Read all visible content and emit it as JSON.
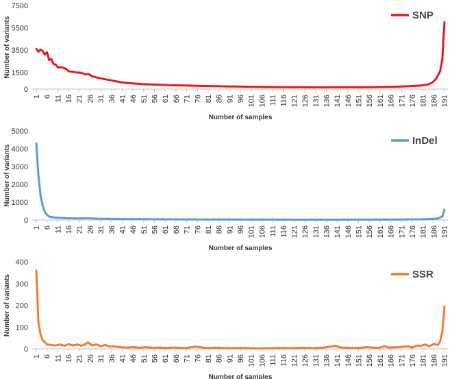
{
  "chart_data": [
    {
      "type": "line",
      "xlabel": "Number of samples",
      "ylabel": "Number of variants",
      "ylim": [
        0,
        7500
      ],
      "yticks": [
        0,
        1500,
        3500,
        5500,
        7500
      ],
      "xlim": [
        1,
        191
      ],
      "xticks": [
        1,
        6,
        11,
        16,
        21,
        26,
        31,
        36,
        41,
        46,
        51,
        56,
        61,
        66,
        71,
        76,
        81,
        86,
        91,
        96,
        101,
        106,
        111,
        116,
        121,
        126,
        131,
        136,
        141,
        146,
        151,
        156,
        161,
        166,
        171,
        176,
        181,
        186,
        191
      ],
      "legend_position": "top-right",
      "series": [
        {
          "name": "SNP",
          "color": "#e41a1c",
          "points": [
            [
              1,
              3600
            ],
            [
              2,
              3350
            ],
            [
              3,
              3550
            ],
            [
              4,
              3400
            ],
            [
              5,
              3100
            ],
            [
              6,
              3300
            ],
            [
              7,
              2600
            ],
            [
              8,
              2700
            ],
            [
              9,
              2250
            ],
            [
              10,
              2200
            ],
            [
              11,
              1950
            ],
            [
              13,
              1950
            ],
            [
              15,
              1800
            ],
            [
              16,
              1600
            ],
            [
              18,
              1550
            ],
            [
              20,
              1480
            ],
            [
              22,
              1450
            ],
            [
              24,
              1300
            ],
            [
              25,
              1380
            ],
            [
              27,
              1150
            ],
            [
              30,
              1000
            ],
            [
              33,
              880
            ],
            [
              36,
              780
            ],
            [
              38,
              700
            ],
            [
              40,
              620
            ],
            [
              43,
              560
            ],
            [
              46,
              510
            ],
            [
              50,
              450
            ],
            [
              55,
              420
            ],
            [
              60,
              380
            ],
            [
              65,
              340
            ],
            [
              70,
              320
            ],
            [
              75,
              300
            ],
            [
              80,
              270
            ],
            [
              85,
              260
            ],
            [
              90,
              240
            ],
            [
              95,
              230
            ],
            [
              100,
              210
            ],
            [
              105,
              200
            ],
            [
              110,
              185
            ],
            [
              115,
              180
            ],
            [
              120,
              175
            ],
            [
              125,
              170
            ],
            [
              130,
              160
            ],
            [
              135,
              160
            ],
            [
              140,
              165
            ],
            [
              145,
              165
            ],
            [
              150,
              170
            ],
            [
              155,
              175
            ],
            [
              160,
              185
            ],
            [
              165,
              200
            ],
            [
              170,
              220
            ],
            [
              175,
              260
            ],
            [
              180,
              320
            ],
            [
              183,
              400
            ],
            [
              185,
              550
            ],
            [
              187,
              900
            ],
            [
              189,
              1600
            ],
            [
              190,
              2700
            ],
            [
              191,
              6000
            ]
          ]
        }
      ]
    },
    {
      "type": "line",
      "xlabel": "Number of samples",
      "ylabel": "Number of variants",
      "ylim": [
        0,
        5000
      ],
      "yticks": [
        0,
        1000,
        2000,
        3000,
        4000,
        5000
      ],
      "xlim": [
        1,
        191
      ],
      "xticks": [
        1,
        6,
        11,
        16,
        21,
        26,
        31,
        36,
        41,
        46,
        51,
        56,
        61,
        66,
        71,
        76,
        81,
        86,
        91,
        96,
        101,
        106,
        111,
        116,
        121,
        126,
        131,
        136,
        141,
        146,
        151,
        156,
        161,
        166,
        171,
        176,
        181,
        186,
        191
      ],
      "legend_position": "top-right",
      "series": [
        {
          "name": "InDel",
          "color": "#5b9bd5",
          "points": [
            [
              1,
              4300
            ],
            [
              2,
              2500
            ],
            [
              3,
              1350
            ],
            [
              4,
              800
            ],
            [
              5,
              450
            ],
            [
              6,
              280
            ],
            [
              7,
              200
            ],
            [
              8,
              160
            ],
            [
              10,
              130
            ],
            [
              12,
              120
            ],
            [
              15,
              100
            ],
            [
              20,
              90
            ],
            [
              25,
              95
            ],
            [
              30,
              75
            ],
            [
              35,
              65
            ],
            [
              40,
              55
            ],
            [
              50,
              45
            ],
            [
              60,
              40
            ],
            [
              70,
              35
            ],
            [
              80,
              30
            ],
            [
              90,
              28
            ],
            [
              100,
              25
            ],
            [
              110,
              22
            ],
            [
              120,
              20
            ],
            [
              130,
              20
            ],
            [
              140,
              20
            ],
            [
              150,
              22
            ],
            [
              160,
              25
            ],
            [
              170,
              30
            ],
            [
              180,
              40
            ],
            [
              185,
              60
            ],
            [
              188,
              90
            ],
            [
              190,
              200
            ],
            [
              191,
              580
            ]
          ]
        }
      ]
    },
    {
      "type": "line",
      "xlabel": "Number of samples",
      "ylabel": "Number of variants",
      "ylim": [
        0,
        400
      ],
      "yticks": [
        0,
        100,
        200,
        300,
        400
      ],
      "xlim": [
        1,
        191
      ],
      "xticks": [
        1,
        6,
        11,
        16,
        21,
        26,
        31,
        36,
        41,
        46,
        51,
        56,
        61,
        66,
        71,
        76,
        81,
        86,
        91,
        96,
        101,
        106,
        111,
        116,
        121,
        126,
        131,
        136,
        141,
        146,
        151,
        156,
        161,
        166,
        171,
        176,
        181,
        186,
        191
      ],
      "legend_position": "top-right",
      "series": [
        {
          "name": "SSR",
          "color": "#ed7d31",
          "points": [
            [
              1,
              360
            ],
            [
              2,
              120
            ],
            [
              3,
              65
            ],
            [
              4,
              40
            ],
            [
              5,
              30
            ],
            [
              6,
              20
            ],
            [
              8,
              18
            ],
            [
              10,
              15
            ],
            [
              12,
              20
            ],
            [
              14,
              14
            ],
            [
              16,
              22
            ],
            [
              18,
              15
            ],
            [
              20,
              20
            ],
            [
              22,
              14
            ],
            [
              24,
              22
            ],
            [
              25,
              30
            ],
            [
              27,
              15
            ],
            [
              29,
              20
            ],
            [
              31,
              12
            ],
            [
              33,
              18
            ],
            [
              35,
              10
            ],
            [
              37,
              12
            ],
            [
              40,
              8
            ],
            [
              43,
              6
            ],
            [
              46,
              8
            ],
            [
              49,
              5
            ],
            [
              52,
              8
            ],
            [
              55,
              5
            ],
            [
              58,
              6
            ],
            [
              61,
              4
            ],
            [
              65,
              6
            ],
            [
              70,
              3
            ],
            [
              75,
              10
            ],
            [
              80,
              4
            ],
            [
              85,
              5
            ],
            [
              90,
              3
            ],
            [
              95,
              4
            ],
            [
              100,
              3
            ],
            [
              105,
              2
            ],
            [
              110,
              3
            ],
            [
              115,
              4
            ],
            [
              120,
              3
            ],
            [
              125,
              5
            ],
            [
              130,
              3
            ],
            [
              135,
              6
            ],
            [
              140,
              14
            ],
            [
              143,
              6
            ],
            [
              146,
              5
            ],
            [
              150,
              4
            ],
            [
              155,
              8
            ],
            [
              160,
              4
            ],
            [
              163,
              12
            ],
            [
              165,
              6
            ],
            [
              170,
              8
            ],
            [
              174,
              12
            ],
            [
              176,
              6
            ],
            [
              178,
              15
            ],
            [
              180,
              14
            ],
            [
              182,
              20
            ],
            [
              184,
              12
            ],
            [
              186,
              22
            ],
            [
              188,
              18
            ],
            [
              189,
              35
            ],
            [
              190,
              80
            ],
            [
              191,
              195
            ]
          ]
        }
      ]
    }
  ]
}
